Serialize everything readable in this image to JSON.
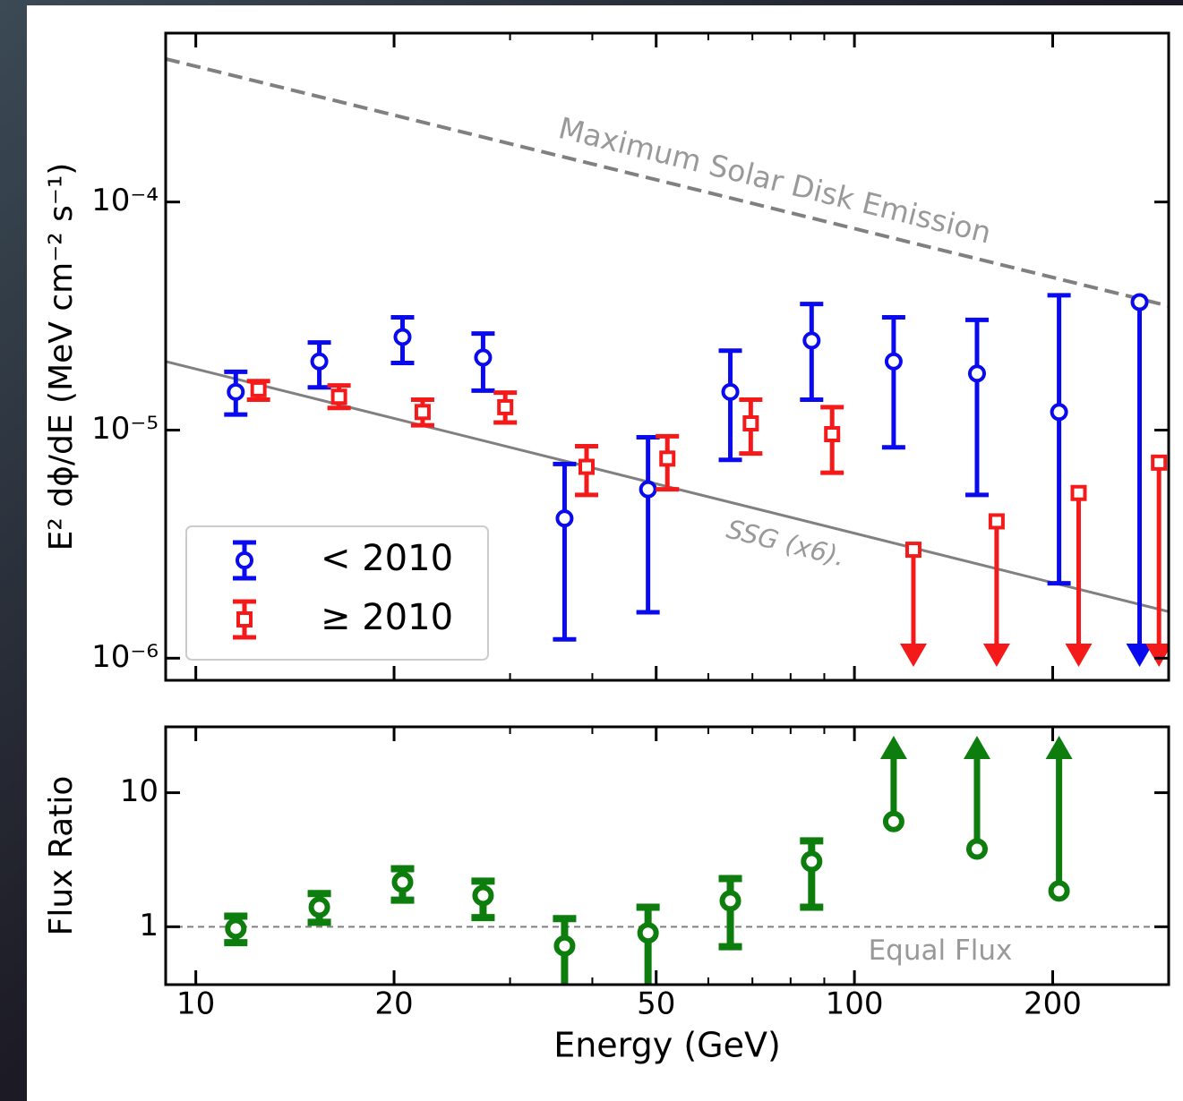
{
  "chart_data": [
    {
      "type": "errorbar",
      "ylabel": "E² dϕ/dE (MeV cm⁻² s⁻¹)",
      "xscale": "log",
      "yscale": "log",
      "xlim": [
        9,
        300
      ],
      "ylim": [
        8e-07,
        0.00055
      ],
      "xticks": [
        10,
        20,
        50,
        100,
        200
      ],
      "xminor": [
        30,
        40,
        60,
        70,
        80,
        90
      ],
      "xticklabels": false,
      "yticks": [
        {
          "value": 1e-06,
          "label": "10⁻⁶"
        },
        {
          "value": 1e-05,
          "label": "10⁻⁵"
        },
        {
          "value": 0.0001,
          "label": "10⁻⁴"
        }
      ],
      "legend": "lower left",
      "series": [
        {
          "name": "< 2010",
          "color": "#0a0aee",
          "marker": "circle",
          "x": [
            11.5,
            15.4,
            20.6,
            27.3,
            36.3,
            48.6,
            64.8,
            86.1,
            114.7,
            153.5,
            204.5,
            271
          ],
          "values": [
            1.47e-05,
            2e-05,
            2.56e-05,
            2.08e-05,
            4.1e-06,
            5.5e-06,
            1.47e-05,
            2.47e-05,
            2e-05,
            1.77e-05,
            1.2e-05,
            3.64e-05
          ],
          "lower": [
            1.17e-05,
            1.54e-05,
            1.97e-05,
            1.49e-05,
            1.21e-06,
            1.59e-06,
            7.4e-06,
            1.36e-05,
            8.4e-06,
            5.2e-06,
            2.13e-06,
            null
          ],
          "upper": [
            1.8e-05,
            2.42e-05,
            3.12e-05,
            2.65e-05,
            7.1e-06,
            9.3e-06,
            2.23e-05,
            3.57e-05,
            3.12e-05,
            3.04e-05,
            3.9e-05,
            null
          ],
          "upper_limit": [
            false,
            false,
            false,
            false,
            false,
            false,
            false,
            false,
            false,
            false,
            false,
            true
          ]
        },
        {
          "name": "≥ 2010",
          "color": "#f41a1a",
          "marker": "square",
          "x": [
            12.45,
            16.5,
            22.1,
            29.5,
            39.2,
            52.0,
            69.6,
            92.5,
            122.9,
            164.4,
            219,
            290
          ],
          "values": [
            1.51e-05,
            1.4e-05,
            1.2e-05,
            1.26e-05,
            6.9e-06,
            7.5e-06,
            1.07e-05,
            9.6e-06,
            2.99e-06,
            3.98e-06,
            5.3e-06,
            7.2e-06
          ],
          "lower": [
            1.36e-05,
            1.25e-05,
            1.05e-05,
            1.08e-05,
            5.2e-06,
            5.5e-06,
            7.9e-06,
            6.5e-06,
            null,
            null,
            null,
            null
          ],
          "upper": [
            1.64e-05,
            1.57e-05,
            1.36e-05,
            1.46e-05,
            8.5e-06,
            9.4e-06,
            1.36e-05,
            1.26e-05,
            null,
            null,
            null,
            null
          ],
          "upper_limit": [
            false,
            false,
            false,
            false,
            false,
            false,
            false,
            false,
            true,
            true,
            true,
            true
          ]
        }
      ],
      "lines": [
        {
          "label": "Maximum Solar Disk Emission",
          "x": [
            9,
            300
          ],
          "values": [
            0.000424,
            3.5e-05
          ],
          "style": "dashed",
          "color": "#808080"
        },
        {
          "label": "SSG (x6).",
          "x": [
            9,
            300
          ],
          "values": [
            2e-05,
            1.6e-06
          ],
          "style": "solid",
          "color": "#808080"
        }
      ]
    },
    {
      "type": "errorbar",
      "xlabel": "Energy (GeV)",
      "ylabel": "Flux Ratio",
      "xscale": "log",
      "yscale": "log",
      "xlim": [
        9,
        300
      ],
      "ylim": [
        0.37,
        31
      ],
      "xticks": [
        10,
        20,
        50,
        100,
        200
      ],
      "xminor": [
        30,
        40,
        60,
        70,
        80,
        90
      ],
      "xticklabels": true,
      "yticks": [
        1,
        10
      ],
      "hline": {
        "value": 1,
        "label": "Equal Flux",
        "color": "#808080"
      },
      "series": [
        {
          "color": "#0d7d0d",
          "marker": "circle",
          "x": [
            11.5,
            15.4,
            20.6,
            27.3,
            36.3,
            48.6,
            64.8,
            86.1,
            114.7,
            153.5,
            204.5
          ],
          "values": [
            0.97,
            1.4,
            2.15,
            1.71,
            0.72,
            0.9,
            1.56,
            3.07,
            6.1,
            3.8,
            1.85
          ],
          "lower": [
            0.76,
            1.08,
            1.58,
            1.17,
            0.28,
            0.34,
            0.71,
            1.4,
            null,
            null,
            null
          ],
          "upper": [
            1.2,
            1.77,
            2.71,
            2.19,
            1.15,
            1.4,
            2.29,
            4.37,
            null,
            null,
            null
          ],
          "lower_limit": [
            false,
            false,
            false,
            false,
            false,
            false,
            false,
            false,
            true,
            true,
            true
          ]
        }
      ]
    }
  ]
}
